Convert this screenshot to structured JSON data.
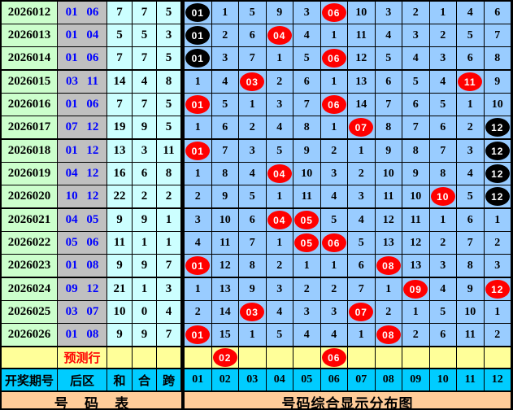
{
  "title": "号码综合显示分布图",
  "colors": {
    "period_bg": "#ccffcc",
    "back_zone_bg": "#c0c0c0",
    "stat_bg": "#ccffff",
    "grid_bg": "#99ccff",
    "prediction_bg": "#ffff99",
    "header_bg": "#00ccff",
    "footer_bg": "#ffcc99",
    "ball_red": "#ff0000",
    "ball_black": "#000000",
    "back_zone_text": "#0000ff",
    "prediction_text": "#ff0000"
  },
  "chart_data": {
    "type": "table",
    "columns": {
      "period": "开奖期号",
      "back_zone": "后区",
      "sum": "和",
      "combined": "合",
      "span": "跨",
      "balls": [
        "01",
        "02",
        "03",
        "04",
        "05",
        "06",
        "07",
        "08",
        "09",
        "10",
        "11",
        "12"
      ]
    },
    "rows": [
      {
        "period": "2026012",
        "back_zone": "01 06",
        "sum": "7",
        "combined": "7",
        "span": "5",
        "group_end": false,
        "cells": [
          {
            "ball": "01",
            "color": "black"
          },
          "1",
          "5",
          "9",
          "3",
          {
            "ball": "06",
            "color": "red"
          },
          "10",
          "3",
          "2",
          "1",
          "4",
          "6"
        ]
      },
      {
        "period": "2026013",
        "back_zone": "01 04",
        "sum": "5",
        "combined": "5",
        "span": "3",
        "group_end": false,
        "cells": [
          {
            "ball": "01",
            "color": "black"
          },
          "2",
          "6",
          {
            "ball": "04",
            "color": "red"
          },
          "4",
          "1",
          "11",
          "4",
          "3",
          "2",
          "5",
          "7"
        ]
      },
      {
        "period": "2026014",
        "back_zone": "01 06",
        "sum": "7",
        "combined": "7",
        "span": "5",
        "group_end": true,
        "cells": [
          {
            "ball": "01",
            "color": "black"
          },
          "3",
          "7",
          "1",
          "5",
          {
            "ball": "06",
            "color": "red"
          },
          "12",
          "5",
          "4",
          "3",
          "6",
          "8"
        ]
      },
      {
        "period": "2026015",
        "back_zone": "03 11",
        "sum": "14",
        "combined": "4",
        "span": "8",
        "group_end": false,
        "cells": [
          "1",
          "4",
          {
            "ball": "03",
            "color": "red"
          },
          "2",
          "6",
          "1",
          "13",
          "6",
          "5",
          "4",
          {
            "ball": "11",
            "color": "red"
          },
          "9"
        ]
      },
      {
        "period": "2026016",
        "back_zone": "01 06",
        "sum": "7",
        "combined": "7",
        "span": "5",
        "group_end": false,
        "cells": [
          {
            "ball": "01",
            "color": "red"
          },
          "5",
          "1",
          "3",
          "7",
          {
            "ball": "06",
            "color": "red"
          },
          "14",
          "7",
          "6",
          "5",
          "1",
          "10"
        ]
      },
      {
        "period": "2026017",
        "back_zone": "07 12",
        "sum": "19",
        "combined": "9",
        "span": "5",
        "group_end": true,
        "cells": [
          "1",
          "6",
          "2",
          "4",
          "8",
          "1",
          {
            "ball": "07",
            "color": "red"
          },
          "8",
          "7",
          "6",
          "2",
          {
            "ball": "12",
            "color": "black"
          }
        ]
      },
      {
        "period": "2026018",
        "back_zone": "01 12",
        "sum": "13",
        "combined": "3",
        "span": "11",
        "group_end": false,
        "cells": [
          {
            "ball": "01",
            "color": "red"
          },
          "7",
          "3",
          "5",
          "9",
          "2",
          "1",
          "9",
          "8",
          "7",
          "3",
          {
            "ball": "12",
            "color": "black"
          }
        ]
      },
      {
        "period": "2026019",
        "back_zone": "04 12",
        "sum": "16",
        "combined": "6",
        "span": "8",
        "group_end": false,
        "cells": [
          "1",
          "8",
          "4",
          {
            "ball": "04",
            "color": "red"
          },
          "10",
          "3",
          "2",
          "10",
          "9",
          "8",
          "4",
          {
            "ball": "12",
            "color": "black"
          }
        ]
      },
      {
        "period": "2026020",
        "back_zone": "10 12",
        "sum": "22",
        "combined": "2",
        "span": "2",
        "group_end": true,
        "cells": [
          "2",
          "9",
          "5",
          "1",
          "11",
          "4",
          "3",
          "11",
          "10",
          {
            "ball": "10",
            "color": "red"
          },
          "5",
          {
            "ball": "12",
            "color": "black"
          }
        ]
      },
      {
        "period": "2026021",
        "back_zone": "04 05",
        "sum": "9",
        "combined": "9",
        "span": "1",
        "group_end": false,
        "cells": [
          "3",
          "10",
          "6",
          {
            "ball": "04",
            "color": "red"
          },
          {
            "ball": "05",
            "color": "red"
          },
          "5",
          "4",
          "12",
          "11",
          "1",
          "6",
          "1"
        ]
      },
      {
        "period": "2026022",
        "back_zone": "05 06",
        "sum": "11",
        "combined": "1",
        "span": "1",
        "group_end": false,
        "cells": [
          "4",
          "11",
          "7",
          "1",
          {
            "ball": "05",
            "color": "red"
          },
          {
            "ball": "06",
            "color": "red"
          },
          "5",
          "13",
          "12",
          "2",
          "7",
          "2"
        ]
      },
      {
        "period": "2026023",
        "back_zone": "01 08",
        "sum": "9",
        "combined": "9",
        "span": "7",
        "group_end": true,
        "cells": [
          {
            "ball": "01",
            "color": "red"
          },
          "12",
          "8",
          "2",
          "1",
          "1",
          "6",
          {
            "ball": "08",
            "color": "red"
          },
          "13",
          "3",
          "8",
          "3"
        ]
      },
      {
        "period": "2026024",
        "back_zone": "09 12",
        "sum": "21",
        "combined": "1",
        "span": "3",
        "group_end": false,
        "cells": [
          "1",
          "13",
          "9",
          "3",
          "2",
          "2",
          "7",
          "1",
          {
            "ball": "09",
            "color": "red"
          },
          "4",
          "9",
          {
            "ball": "12",
            "color": "red"
          }
        ]
      },
      {
        "period": "2026025",
        "back_zone": "03 07",
        "sum": "10",
        "combined": "0",
        "span": "4",
        "group_end": false,
        "cells": [
          "2",
          "14",
          {
            "ball": "03",
            "color": "red"
          },
          "4",
          "3",
          "3",
          {
            "ball": "07",
            "color": "red"
          },
          "2",
          "1",
          "5",
          "10",
          "1"
        ]
      },
      {
        "period": "2026026",
        "back_zone": "01 08",
        "sum": "9",
        "combined": "9",
        "span": "7",
        "group_end": true,
        "cells": [
          {
            "ball": "01",
            "color": "red"
          },
          "15",
          "1",
          "5",
          "4",
          "4",
          "1",
          {
            "ball": "08",
            "color": "red"
          },
          "2",
          "6",
          "11",
          "2"
        ]
      }
    ],
    "prediction_row": {
      "label": "预测行",
      "cells": [
        "",
        {
          "ball": "02",
          "color": "red"
        },
        "",
        "",
        "",
        {
          "ball": "06",
          "color": "red"
        },
        "",
        "",
        "",
        "",
        "",
        ""
      ]
    },
    "footer": {
      "left": "号 码 表",
      "right": "号码综合显示分布图"
    }
  }
}
